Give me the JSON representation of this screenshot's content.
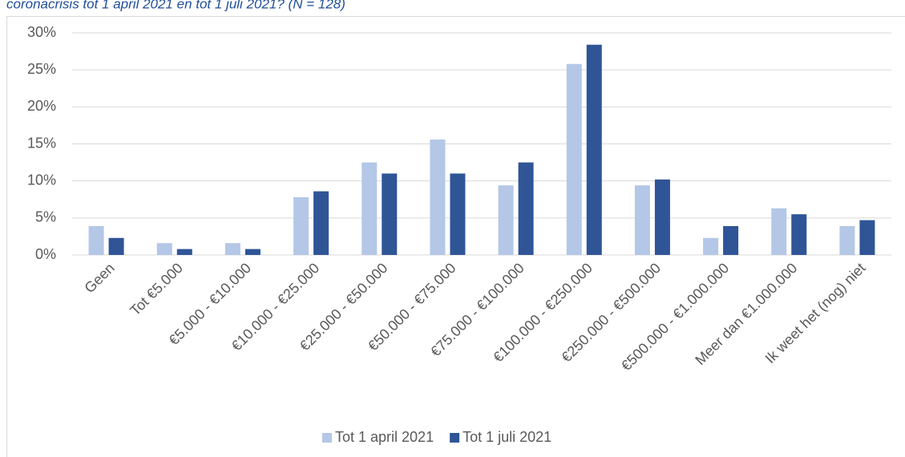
{
  "chart_data": {
    "type": "bar",
    "title": "coronacrisis tot 1 april 2021 en tot 1 juli 2021? (N = 128)",
    "categories": [
      "Geen",
      "Tot €5.000",
      "€5.000 - €10.000",
      "€10.000 - €25.000",
      "€25.000 - €50.000",
      "€50.000 - €75.000",
      "€75.000 - €100.000",
      "€100.000 - €250.000",
      "€250.000 - €500.000",
      "€500.000 - €1.000.000",
      "Meer dan €1.000.000",
      "Ik weet het (nog) niet"
    ],
    "series": [
      {
        "name": "Tot 1 april 2021",
        "color": "#b4c7e7",
        "values": [
          3.9,
          1.6,
          1.6,
          7.8,
          12.5,
          15.6,
          9.4,
          25.8,
          9.4,
          2.3,
          6.3,
          3.9
        ]
      },
      {
        "name": "Tot 1 juli 2021",
        "color": "#2f5597",
        "values": [
          2.3,
          0.8,
          0.8,
          8.6,
          11.0,
          11.0,
          12.5,
          28.4,
          10.2,
          3.9,
          5.5,
          4.7
        ]
      }
    ],
    "ylim": [
      0,
      30
    ],
    "yticks": [
      {
        "value": 0,
        "label": "0%"
      },
      {
        "value": 5,
        "label": "5%"
      },
      {
        "value": 10,
        "label": "10%"
      },
      {
        "value": 15,
        "label": "15%"
      },
      {
        "value": 20,
        "label": "20%"
      },
      {
        "value": 25,
        "label": "25%"
      },
      {
        "value": 30,
        "label": "30%"
      }
    ],
    "grid": true,
    "legend": "bottom"
  }
}
